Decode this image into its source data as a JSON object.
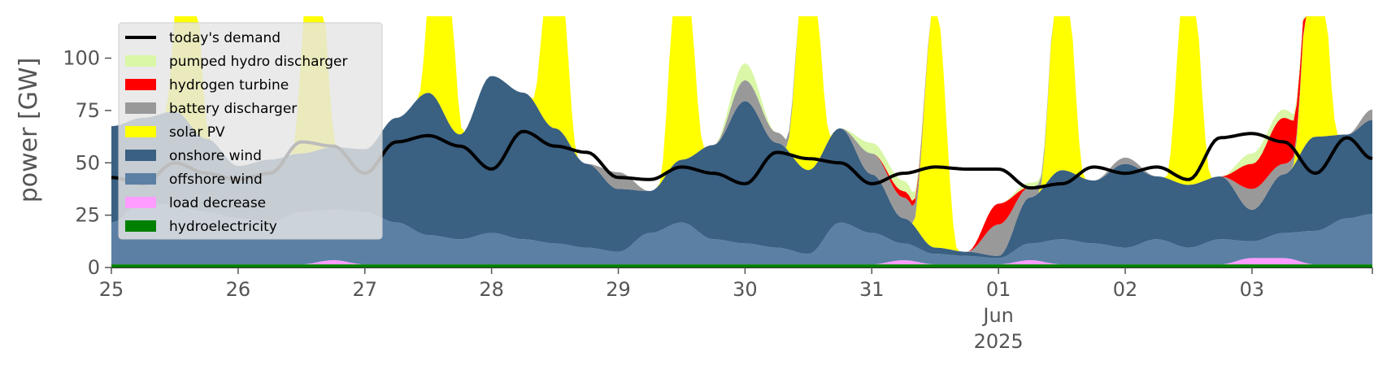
{
  "chart_data": {
    "type": "area",
    "title": "",
    "ylabel": "power [GW]",
    "xlabel": "",
    "ylim": [
      0,
      120
    ],
    "xlim": [
      0,
      9.95
    ],
    "yticks": [
      0,
      25,
      50,
      75,
      100
    ],
    "xticks": [
      {
        "x": 0,
        "label": "25"
      },
      {
        "x": 1,
        "label": "26"
      },
      {
        "x": 2,
        "label": "27"
      },
      {
        "x": 3,
        "label": "28"
      },
      {
        "x": 4,
        "label": "29"
      },
      {
        "x": 5,
        "label": "30"
      },
      {
        "x": 6,
        "label": "31"
      },
      {
        "x": 7,
        "label": "01",
        "sub": [
          "Jun",
          "2025"
        ]
      },
      {
        "x": 8,
        "label": "02"
      },
      {
        "x": 9,
        "label": "03"
      }
    ],
    "x": [
      0,
      0.25,
      0.5,
      0.75,
      1,
      1.25,
      1.5,
      1.75,
      2,
      2.25,
      2.5,
      2.75,
      3,
      3.25,
      3.5,
      3.75,
      4,
      4.25,
      4.5,
      4.75,
      5,
      5.25,
      5.5,
      5.75,
      6,
      6.25,
      6.5,
      6.75,
      7,
      7.25,
      7.5,
      7.75,
      8,
      8.25,
      8.5,
      8.75,
      9,
      9.25,
      9.5,
      9.75,
      9.95
    ],
    "series": [
      {
        "name": "hydroelectricity",
        "color": "#008000",
        "values": [
          1.5,
          1.5,
          1.5,
          1.5,
          1.5,
          1.5,
          1.5,
          1.5,
          1.5,
          1.5,
          1.5,
          1.5,
          1.5,
          1.5,
          1.5,
          1.5,
          1.5,
          1.5,
          1.5,
          1.5,
          1.5,
          1.5,
          1.5,
          1.5,
          1.5,
          1.5,
          1.5,
          1.5,
          1.5,
          1.5,
          1.5,
          1.5,
          1.5,
          1.5,
          1.5,
          1.5,
          1.5,
          1.5,
          1.5,
          1.5,
          1.5
        ]
      },
      {
        "name": "load decrease",
        "color": "#ff9cff",
        "values": [
          0,
          0,
          0,
          0,
          0,
          0,
          0,
          2,
          0,
          0,
          0,
          0,
          0,
          0,
          0,
          0,
          0,
          0,
          0,
          0,
          0,
          0,
          0,
          0,
          0,
          2,
          0,
          0,
          0,
          2,
          0,
          0,
          0,
          0,
          0,
          0,
          3,
          3,
          0,
          0,
          0
        ]
      },
      {
        "name": "offshore wind",
        "color": "#5b80a4",
        "values": [
          20,
          30,
          28,
          25,
          22,
          20,
          25,
          24,
          25,
          20,
          14,
          12,
          15,
          12,
          10,
          8,
          6,
          15,
          20,
          12,
          10,
          8,
          5,
          20,
          15,
          8,
          5,
          4,
          3,
          8,
          12,
          10,
          8,
          12,
          8,
          12,
          8,
          12,
          16,
          22,
          24
        ]
      },
      {
        "name": "onshore wind",
        "color": "#3a6082",
        "values": [
          46,
          40,
          45,
          35,
          25,
          30,
          28,
          30,
          30,
          50,
          68,
          50,
          75,
          70,
          55,
          40,
          30,
          20,
          30,
          45,
          68,
          50,
          40,
          45,
          28,
          12,
          3,
          2,
          1,
          22,
          33,
          30,
          40,
          30,
          30,
          30,
          15,
          28,
          45,
          40,
          45
        ]
      },
      {
        "name": "solar PV",
        "color": "#ffff00",
        "values": [
          0,
          0,
          0,
          0,
          0,
          0,
          0,
          0,
          0,
          0,
          0,
          0,
          0,
          0,
          0,
          0,
          0,
          0,
          0,
          0,
          0,
          0,
          0,
          0,
          0,
          0,
          0,
          0,
          0,
          0,
          0,
          0,
          0,
          0,
          0,
          0,
          0,
          0,
          0,
          0,
          0
        ]
      },
      {
        "name": "battery discharger",
        "color": "#999999",
        "values": [
          0,
          0,
          0,
          0,
          0,
          0,
          0,
          0,
          0,
          0,
          0,
          0,
          0,
          0,
          0,
          0,
          8,
          0,
          0,
          0,
          10,
          5,
          0,
          0,
          10,
          10,
          0,
          0,
          15,
          5,
          0,
          0,
          3,
          0,
          0,
          0,
          10,
          5,
          0,
          0,
          5
        ]
      },
      {
        "name": "hydrogen turbine",
        "color": "#ff0000",
        "values": [
          0,
          0,
          0,
          0,
          0,
          0,
          0,
          0,
          0,
          0,
          0,
          0,
          0,
          0,
          0,
          0,
          0,
          0,
          0,
          0,
          0,
          0,
          0,
          0,
          0,
          3,
          0,
          0,
          10,
          0,
          0,
          0,
          0,
          0,
          0,
          0,
          12,
          22,
          0,
          0,
          0
        ]
      },
      {
        "name": "pumped hydro discharger",
        "color": "#d9f7a6",
        "values": [
          0,
          0,
          0,
          0,
          0,
          0,
          0,
          0,
          0,
          0,
          0,
          0,
          0,
          0,
          0,
          0,
          0,
          0,
          0,
          0,
          8,
          0,
          0,
          0,
          5,
          5,
          0,
          0,
          0,
          2,
          0,
          0,
          0,
          0,
          0,
          0,
          5,
          4,
          0,
          0,
          0
        ]
      }
    ],
    "solar_peaks": [
      0.6,
      1.6,
      2.6,
      3.5,
      4.5,
      5.5,
      6.5,
      7.5,
      8.5,
      9.5
    ],
    "solar_peak_values": [
      118,
      119,
      120,
      110,
      120,
      120,
      120,
      120,
      120,
      120
    ],
    "solar_peak_width": 0.18,
    "demand": {
      "name": "today's demand",
      "color": "#000000",
      "values": [
        43,
        40,
        50,
        45,
        42,
        45,
        60,
        58,
        45,
        60,
        63,
        58,
        47,
        65,
        58,
        55,
        43,
        42,
        48,
        45,
        40,
        55,
        52,
        50,
        40,
        45,
        48,
        47,
        47,
        38,
        40,
        48,
        45,
        48,
        42,
        62,
        64,
        60,
        45,
        62,
        52
      ]
    },
    "legend": {
      "position": "upper-left",
      "entries": [
        "today's demand",
        "pumped hydro discharger",
        "hydrogen turbine",
        "battery discharger",
        "solar PV",
        "onshore wind",
        "offshore wind",
        "load decrease",
        "hydroelectricity"
      ]
    }
  }
}
